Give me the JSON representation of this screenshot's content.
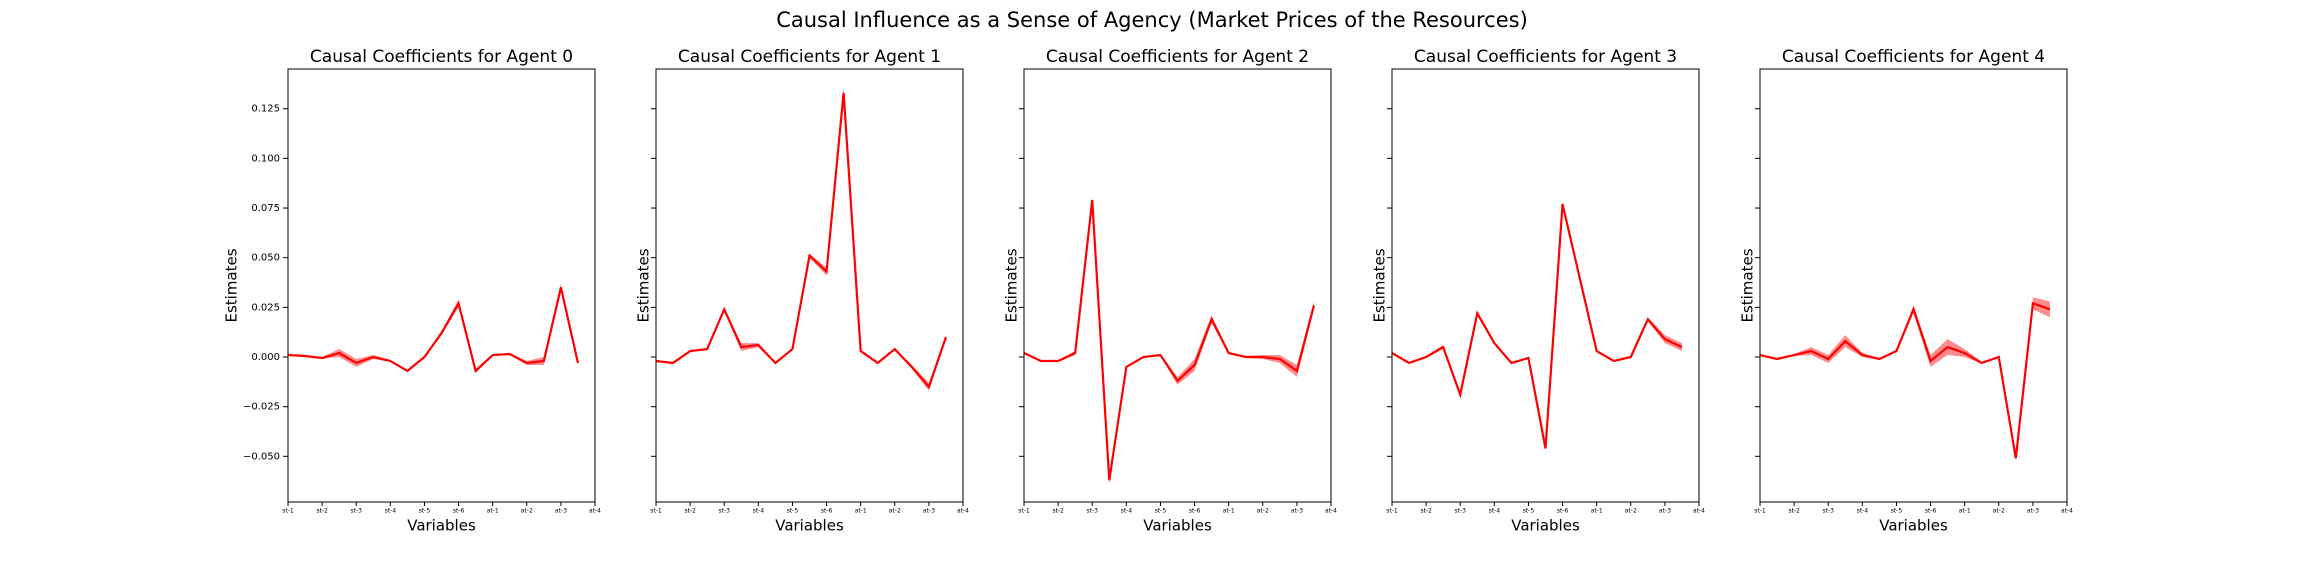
{
  "title": "Causal Influence as a Sense of Agency (Market Prices of the Resources)",
  "ylim": [
    -0.073,
    0.145
  ],
  "yticks": [
    {
      "value": -0.05,
      "label": "−0.050"
    },
    {
      "value": -0.025,
      "label": "−0.025"
    },
    {
      "value": 0,
      "label": "0.000"
    },
    {
      "value": 0.025,
      "label": "0.025"
    },
    {
      "value": 0.05,
      "label": "0.050"
    },
    {
      "value": 0.075,
      "label": "0.075"
    },
    {
      "value": 0.1,
      "label": "0.100"
    },
    {
      "value": 0.125,
      "label": "0.125"
    }
  ],
  "chart_data": [
    {
      "type": "line",
      "title": "Causal Coefficients for Agent 0",
      "x_label": "Variables",
      "y_label": "Estimates",
      "x": [
        0,
        1,
        2,
        3,
        4,
        5,
        6,
        7,
        8,
        9,
        10,
        11,
        12,
        13,
        14,
        15,
        16,
        17
      ],
      "xlim": [
        0,
        18
      ],
      "xticks": [
        {
          "value": 0,
          "label": "st-1"
        },
        {
          "value": 2,
          "label": "st-2"
        },
        {
          "value": 4,
          "label": "st-3"
        },
        {
          "value": 6,
          "label": "st-4"
        },
        {
          "value": 8,
          "label": "st-5"
        },
        {
          "value": 10,
          "label": "st-6"
        },
        {
          "value": 12,
          "label": "at-1"
        },
        {
          "value": 14,
          "label": "at-2"
        },
        {
          "value": 16,
          "label": "at-3"
        },
        {
          "value": 18,
          "label": "at-4"
        }
      ],
      "series": [
        {
          "color": "#ff0000",
          "values": [
            0.001,
            0.0005,
            -0.0005,
            0.002,
            -0.003,
            0,
            -0.002,
            -0.007,
            0,
            0.012,
            0.027,
            -0.007,
            0.001,
            0.0015,
            -0.003,
            -0.002,
            0.035,
            -0.003
          ],
          "errors": [
            0.0005,
            0.0005,
            0.0005,
            0.002,
            0.002,
            0.001,
            0.0005,
            0.0005,
            0.0005,
            0.001,
            0.002,
            0.001,
            0.0005,
            0.0005,
            0.001,
            0.002,
            0.002,
            0.0005
          ]
        }
      ]
    },
    {
      "type": "line",
      "title": "Causal Coefficients for Agent 1",
      "x_label": "Variables",
      "y_label": "Estimates",
      "x": [
        0,
        1,
        2,
        3,
        4,
        5,
        6,
        7,
        8,
        9,
        10,
        11,
        12,
        13,
        14,
        15,
        16,
        17
      ],
      "xlim": [
        0,
        18
      ],
      "xticks": [
        {
          "value": 0,
          "label": "st-1"
        },
        {
          "value": 2,
          "label": "st-2"
        },
        {
          "value": 4,
          "label": "st-3"
        },
        {
          "value": 6,
          "label": "st-4"
        },
        {
          "value": 8,
          "label": "st-5"
        },
        {
          "value": 10,
          "label": "st-6"
        },
        {
          "value": 12,
          "label": "at-1"
        },
        {
          "value": 14,
          "label": "at-2"
        },
        {
          "value": 16,
          "label": "at-3"
        },
        {
          "value": 18,
          "label": "at-4"
        }
      ],
      "series": [
        {
          "color": "#ff0000",
          "values": [
            -0.002,
            -0.003,
            0.003,
            0.004,
            0.024,
            0.005,
            0.006,
            -0.003,
            0.004,
            0.051,
            0.043,
            0.133,
            0.003,
            -0.003,
            0.004,
            -0.005,
            -0.015,
            0.01
          ],
          "errors": [
            0.0005,
            0.0005,
            0.0005,
            0.0005,
            0.001,
            0.002,
            0.001,
            0.0005,
            0.0005,
            0.001,
            0.002,
            0.003,
            0.0005,
            0.0005,
            0.0005,
            0.001,
            0.002,
            0.001
          ]
        }
      ]
    },
    {
      "type": "line",
      "title": "Causal Coefficients for Agent 2",
      "x_label": "Variables",
      "y_label": "Estimates",
      "x": [
        0,
        1,
        2,
        3,
        4,
        5,
        6,
        7,
        8,
        9,
        10,
        11,
        12,
        13,
        14,
        15,
        16,
        17
      ],
      "xlim": [
        0,
        18
      ],
      "xticks": [
        {
          "value": 0,
          "label": "st-1"
        },
        {
          "value": 2,
          "label": "st-2"
        },
        {
          "value": 4,
          "label": "st-3"
        },
        {
          "value": 6,
          "label": "st-4"
        },
        {
          "value": 8,
          "label": "st-5"
        },
        {
          "value": 10,
          "label": "st-6"
        },
        {
          "value": 12,
          "label": "at-1"
        },
        {
          "value": 14,
          "label": "at-2"
        },
        {
          "value": 16,
          "label": "at-3"
        },
        {
          "value": 18,
          "label": "at-4"
        }
      ],
      "series": [
        {
          "color": "#ff0000",
          "values": [
            0.002,
            -0.002,
            -0.002,
            0.002,
            0.079,
            -0.062,
            -0.005,
            0,
            0.001,
            -0.012,
            -0.004,
            0.019,
            0.002,
            0,
            0,
            -0.001,
            -0.007,
            0.026
          ],
          "errors": [
            0.0005,
            0.0005,
            0.0005,
            0.001,
            0.002,
            0.002,
            0.0005,
            0.0005,
            0.0005,
            0.002,
            0.003,
            0.002,
            0.0005,
            0.0005,
            0.001,
            0.002,
            0.003,
            0.002
          ]
        }
      ]
    },
    {
      "type": "line",
      "title": "Causal Coefficients for Agent 3",
      "x_label": "Variables",
      "y_label": "Estimates",
      "x": [
        0,
        1,
        2,
        3,
        4,
        5,
        6,
        7,
        8,
        9,
        10,
        11,
        12,
        13,
        14,
        15,
        16,
        17
      ],
      "xlim": [
        0,
        18
      ],
      "xticks": [
        {
          "value": 0,
          "label": "st-1"
        },
        {
          "value": 2,
          "label": "st-2"
        },
        {
          "value": 4,
          "label": "st-3"
        },
        {
          "value": 6,
          "label": "st-4"
        },
        {
          "value": 8,
          "label": "st-5"
        },
        {
          "value": 10,
          "label": "st-6"
        },
        {
          "value": 12,
          "label": "at-1"
        },
        {
          "value": 14,
          "label": "at-2"
        },
        {
          "value": 16,
          "label": "at-3"
        },
        {
          "value": 18,
          "label": "at-4"
        }
      ],
      "series": [
        {
          "color": "#ff0000",
          "values": [
            0.002,
            -0.003,
            0,
            0.005,
            -0.019,
            0.022,
            0.007,
            -0.003,
            -0.0005,
            -0.046,
            0.077,
            0.04,
            0.003,
            -0.002,
            0,
            0.019,
            0.009,
            0.005
          ],
          "errors": [
            0.0005,
            0.0005,
            0.0005,
            0.001,
            0.001,
            0.001,
            0.0005,
            0.0005,
            0.0005,
            0.001,
            0.001,
            0.001,
            0.0005,
            0.0005,
            0.0005,
            0.001,
            0.002,
            0.002
          ]
        }
      ]
    },
    {
      "type": "line",
      "title": "Causal Coefficients for Agent 4",
      "x_label": "Variables",
      "y_label": "Estimates",
      "x": [
        0,
        1,
        2,
        3,
        4,
        5,
        6,
        7,
        8,
        9,
        10,
        11,
        12,
        13,
        14,
        15,
        16,
        17
      ],
      "xlim": [
        0,
        18
      ],
      "xticks": [
        {
          "value": 0,
          "label": "st-1"
        },
        {
          "value": 2,
          "label": "st-2"
        },
        {
          "value": 4,
          "label": "st-3"
        },
        {
          "value": 6,
          "label": "st-4"
        },
        {
          "value": 8,
          "label": "st-5"
        },
        {
          "value": 10,
          "label": "st-6"
        },
        {
          "value": 12,
          "label": "at-1"
        },
        {
          "value": 14,
          "label": "at-2"
        },
        {
          "value": 16,
          "label": "at-3"
        },
        {
          "value": 18,
          "label": "at-4"
        }
      ],
      "series": [
        {
          "color": "#ff0000",
          "values": [
            0.001,
            -0.001,
            0.001,
            0.003,
            -0.001,
            0.008,
            0.001,
            -0.001,
            0.003,
            0.024,
            -0.002,
            0.005,
            0.002,
            -0.003,
            0,
            -0.051,
            0.027,
            0.024
          ],
          "errors": [
            0.0005,
            0.0005,
            0.0005,
            0.002,
            0.002,
            0.003,
            0.001,
            0.0005,
            0.0005,
            0.002,
            0.003,
            0.004,
            0.002,
            0.0005,
            0.0005,
            0.001,
            0.003,
            0.004
          ]
        }
      ]
    }
  ]
}
